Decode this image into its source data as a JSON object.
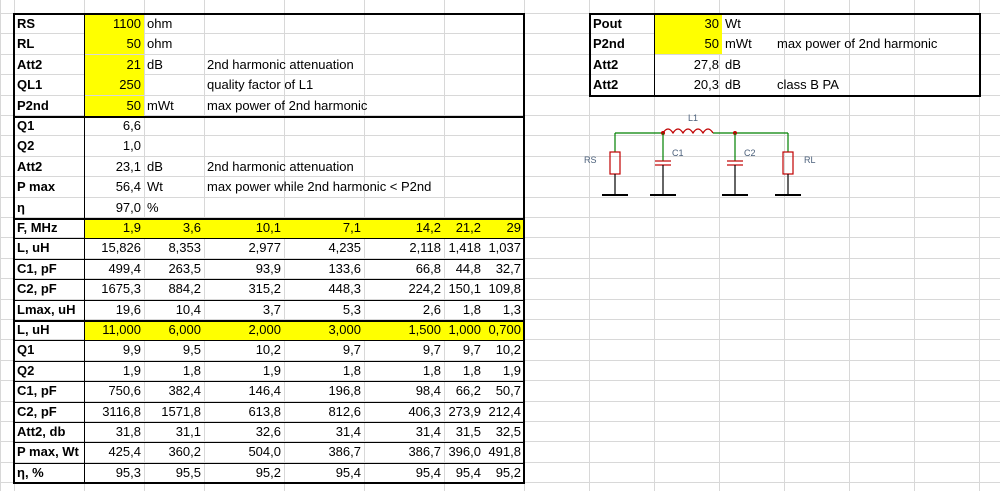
{
  "left_params": [
    {
      "label": "RS",
      "value": "1100",
      "unit": "ohm",
      "note": ""
    },
    {
      "label": "RL",
      "value": "50",
      "unit": "ohm",
      "note": ""
    },
    {
      "label": "Att2",
      "value": "21",
      "unit": "dB",
      "note": "2nd harmonic attenuation"
    },
    {
      "label": "QL1",
      "value": "250",
      "unit": "",
      "note": "quality factor of L1"
    },
    {
      "label": "P2nd",
      "value": "50",
      "unit": "mWt",
      "note": "max power of 2nd harmonic"
    }
  ],
  "left_results": [
    {
      "label": "Q1",
      "value": "6,6",
      "unit": "",
      "note": ""
    },
    {
      "label": "Q2",
      "value": "1,0",
      "unit": "",
      "note": ""
    },
    {
      "label": "Att2",
      "value": "23,1",
      "unit": "dB",
      "note": "2nd harmonic attenuation"
    },
    {
      "label": "P max",
      "value": "56,4",
      "unit": "Wt",
      "note": "max power while 2nd harmonic < P2nd"
    },
    {
      "label": "η",
      "value": "97,0",
      "unit": "%",
      "note": ""
    }
  ],
  "table1": [
    {
      "label": "F, MHz",
      "values": [
        "1,9",
        "3,6",
        "10,1",
        "7,1",
        "14,2",
        "21,2",
        "29"
      ]
    },
    {
      "label": "L, uH",
      "values": [
        "15,826",
        "8,353",
        "2,977",
        "4,235",
        "2,118",
        "1,418",
        "1,037"
      ]
    },
    {
      "label": "C1, pF",
      "values": [
        "499,4",
        "263,5",
        "93,9",
        "133,6",
        "66,8",
        "44,8",
        "32,7"
      ]
    },
    {
      "label": "C2, pF",
      "values": [
        "1675,3",
        "884,2",
        "315,2",
        "448,3",
        "224,2",
        "150,1",
        "109,8"
      ]
    },
    {
      "label": "Lmax, uH",
      "values": [
        "19,6",
        "10,4",
        "3,7",
        "5,3",
        "2,6",
        "1,8",
        "1,3"
      ]
    }
  ],
  "table2": [
    {
      "label": "L, uH",
      "values": [
        "11,000",
        "6,000",
        "2,000",
        "3,000",
        "1,500",
        "1,000",
        "0,700"
      ]
    },
    {
      "label": "Q1",
      "values": [
        "9,9",
        "9,5",
        "10,2",
        "9,7",
        "9,7",
        "9,7",
        "10,2"
      ]
    },
    {
      "label": "Q2",
      "values": [
        "1,9",
        "1,8",
        "1,9",
        "1,8",
        "1,8",
        "1,8",
        "1,9"
      ]
    },
    {
      "label": "C1, pF",
      "values": [
        "750,6",
        "382,4",
        "146,4",
        "196,8",
        "98,4",
        "66,2",
        "50,7"
      ]
    },
    {
      "label": "C2, pF",
      "values": [
        "3116,8",
        "1571,8",
        "613,8",
        "812,6",
        "406,3",
        "273,9",
        "212,4"
      ]
    },
    {
      "label": "Att2, db",
      "values": [
        "31,8",
        "31,1",
        "32,6",
        "31,4",
        "31,4",
        "31,5",
        "32,5"
      ]
    },
    {
      "label": "P max, Wt",
      "values": [
        "425,4",
        "360,2",
        "504,0",
        "386,7",
        "386,7",
        "396,0",
        "491,8"
      ]
    },
    {
      "label": "η, %",
      "values": [
        "95,3",
        "95,5",
        "95,2",
        "95,4",
        "95,4",
        "95,4",
        "95,2"
      ]
    }
  ],
  "right_params": [
    {
      "label": "Pout",
      "value": "30",
      "unit": "Wt",
      "note": ""
    },
    {
      "label": "P2nd",
      "value": "50",
      "unit": "mWt",
      "note": "max power of 2nd harmonic"
    },
    {
      "label": "Att2",
      "value": "27,8",
      "unit": "dB",
      "note": ""
    },
    {
      "label": "Att2",
      "value": "20,3",
      "unit": "dB",
      "note": "class B PA"
    }
  ],
  "schematic": {
    "labels": {
      "rs": "RS",
      "l1": "L1",
      "c1": "C1",
      "c2": "C2",
      "rl": "RL"
    },
    "colors": {
      "wire": "#008000",
      "component": "#c00000",
      "ground": "#000000",
      "label": "#4a5f7a"
    }
  },
  "colors": {
    "highlight": "#ffff00",
    "grid": "#d8d8d8"
  }
}
